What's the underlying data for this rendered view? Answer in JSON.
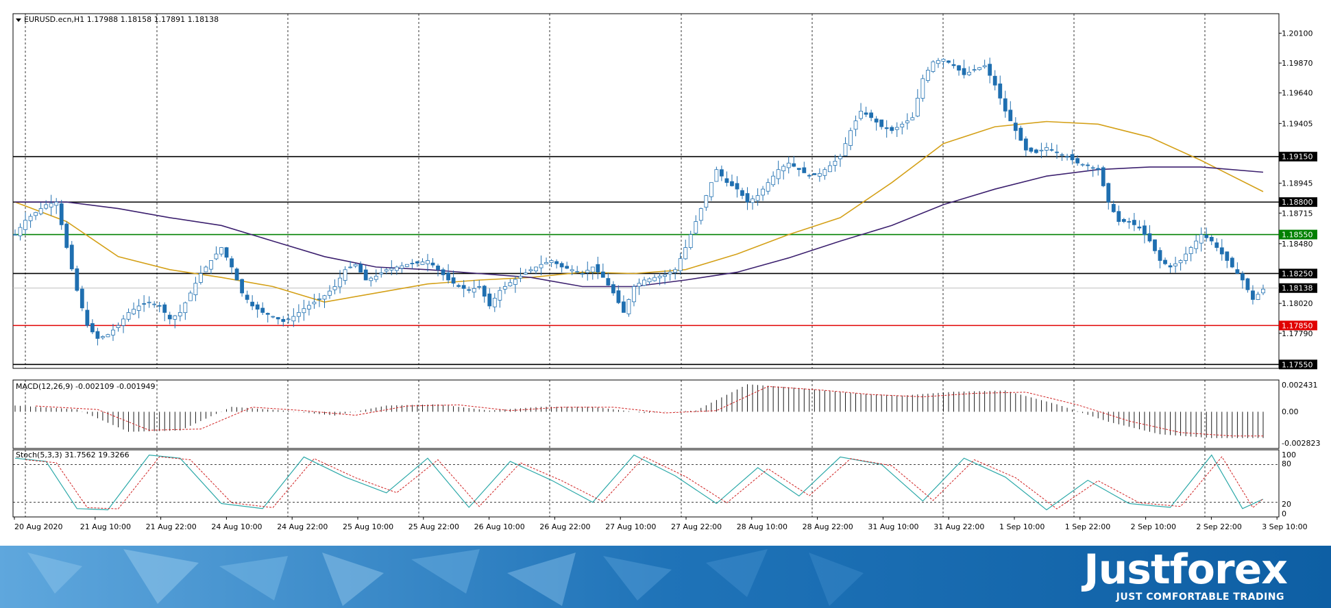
{
  "window": {
    "symbol_line": "EURUSD.ecn,H1  1.17988 1.18158 1.17891 1.18138",
    "macd_label": "MACD(12,26,9) -0.002109 -0.001949",
    "stoch_label": "Stoch(5,3,3) 31.7562 19.3266"
  },
  "price_axis": {
    "ticks": [
      "1.20100",
      "1.19870",
      "1.19640",
      "1.19405",
      "1.18945",
      "1.18715",
      "1.18480",
      "1.18020",
      "1.17790"
    ],
    "tick_values": [
      1.201,
      1.1987,
      1.1964,
      1.19405,
      1.18945,
      1.18715,
      1.1848,
      1.1802,
      1.1779
    ],
    "range": [
      1.1752,
      1.2025
    ]
  },
  "levels": [
    {
      "label": "1.19150",
      "value": 1.1915,
      "color": "#000000"
    },
    {
      "label": "1.18800",
      "value": 1.188,
      "color": "#000000"
    },
    {
      "label": "1.18550",
      "value": 1.1855,
      "color": "#008000"
    },
    {
      "label": "1.18250",
      "value": 1.1825,
      "color": "#000000"
    },
    {
      "label": "1.18138",
      "value": 1.18138,
      "color": "#bdbdbd",
      "current": true
    },
    {
      "label": "1.17850",
      "value": 1.1785,
      "color": "#e00000"
    },
    {
      "label": "1.17550",
      "value": 1.1755,
      "color": "#000000"
    }
  ],
  "macd_axis": {
    "ticks": [
      "0.002431",
      "0.00",
      "-0.002823"
    ]
  },
  "stoch_axis": {
    "ticks": [
      "100",
      "80",
      "20",
      "0"
    ]
  },
  "time_axis": [
    "20 Aug 2020",
    "21 Aug 10:00",
    "21 Aug 22:00",
    "24 Aug 10:00",
    "24 Aug 22:00",
    "25 Aug 10:00",
    "25 Aug 22:00",
    "26 Aug 10:00",
    "26 Aug 22:00",
    "27 Aug 10:00",
    "27 Aug 22:00",
    "28 Aug 10:00",
    "28 Aug 22:00",
    "31 Aug 10:00",
    "31 Aug 22:00",
    "1 Sep 10:00",
    "1 Sep 22:00",
    "2 Sep 10:00",
    "2 Sep 22:00",
    "3 Sep 10:00"
  ],
  "colors": {
    "bull_candle": "#ffffff",
    "bear_candle": "#1f6fb0",
    "candle_outline": "#1f6fb0",
    "ma_fast": "#d4a017",
    "ma_slow": "#3b1f6e",
    "macd_signal": "#d02020",
    "stoch_main": "#2aa8a8",
    "stoch_signal": "#d02020",
    "banner_blue": "#1a6fb3"
  },
  "chart_data": {
    "type": "candlestick",
    "symbol": "EURUSD.ecn",
    "timeframe": "H1",
    "ohlc_last": {
      "open": 1.17988,
      "high": 1.18158,
      "low": 1.17891,
      "close": 1.18138
    },
    "close_path": [
      [
        0,
        1.1855
      ],
      [
        2,
        1.1866
      ],
      [
        4,
        1.1872
      ],
      [
        6,
        1.1878
      ],
      [
        8,
        1.188
      ],
      [
        10,
        1.1845
      ],
      [
        12,
        1.1812
      ],
      [
        14,
        1.1785
      ],
      [
        16,
        1.1775
      ],
      [
        18,
        1.1778
      ],
      [
        20,
        1.1785
      ],
      [
        22,
        1.1795
      ],
      [
        24,
        1.18
      ],
      [
        26,
        1.1803
      ],
      [
        28,
        1.18
      ],
      [
        30,
        1.179
      ],
      [
        32,
        1.1795
      ],
      [
        34,
        1.181
      ],
      [
        36,
        1.1825
      ],
      [
        38,
        1.1835
      ],
      [
        40,
        1.1845
      ],
      [
        42,
        1.183
      ],
      [
        44,
        1.181
      ],
      [
        46,
        1.18
      ],
      [
        48,
        1.1795
      ],
      [
        50,
        1.1792
      ],
      [
        52,
        1.1788
      ],
      [
        54,
        1.1792
      ],
      [
        56,
        1.1798
      ],
      [
        58,
        1.1803
      ],
      [
        60,
        1.1808
      ],
      [
        62,
        1.1815
      ],
      [
        64,
        1.1828
      ],
      [
        66,
        1.1832
      ],
      [
        68,
        1.182
      ],
      [
        70,
        1.1823
      ],
      [
        72,
        1.1828
      ],
      [
        74,
        1.183
      ],
      [
        76,
        1.1832
      ],
      [
        78,
        1.1833
      ],
      [
        80,
        1.1835
      ],
      [
        82,
        1.1828
      ],
      [
        84,
        1.182
      ],
      [
        86,
        1.1815
      ],
      [
        88,
        1.1812
      ],
      [
        90,
        1.1815
      ],
      [
        92,
        1.18
      ],
      [
        94,
        1.1812
      ],
      [
        96,
        1.1818
      ],
      [
        98,
        1.1823
      ],
      [
        100,
        1.1828
      ],
      [
        102,
        1.1832
      ],
      [
        104,
        1.1835
      ],
      [
        106,
        1.183
      ],
      [
        108,
        1.1828
      ],
      [
        110,
        1.1825
      ],
      [
        112,
        1.183
      ],
      [
        114,
        1.1822
      ],
      [
        116,
        1.181
      ],
      [
        118,
        1.1795
      ],
      [
        120,
        1.1815
      ],
      [
        122,
        1.182
      ],
      [
        124,
        1.1822
      ],
      [
        126,
        1.1824
      ],
      [
        128,
        1.1828
      ],
      [
        130,
        1.1845
      ],
      [
        132,
        1.1865
      ],
      [
        134,
        1.1885
      ],
      [
        136,
        1.1905
      ],
      [
        138,
        1.1895
      ],
      [
        140,
        1.189
      ],
      [
        142,
        1.188
      ],
      [
        144,
        1.1885
      ],
      [
        146,
        1.1895
      ],
      [
        148,
        1.1905
      ],
      [
        150,
        1.191
      ],
      [
        152,
        1.1905
      ],
      [
        154,
        1.19
      ],
      [
        156,
        1.1902
      ],
      [
        158,
        1.1908
      ],
      [
        160,
        1.1915
      ],
      [
        162,
        1.1935
      ],
      [
        164,
        1.195
      ],
      [
        166,
        1.1945
      ],
      [
        168,
        1.1938
      ],
      [
        170,
        1.1935
      ],
      [
        172,
        1.194
      ],
      [
        174,
        1.1945
      ],
      [
        176,
        1.1975
      ],
      [
        178,
        1.1988
      ],
      [
        180,
        1.199
      ],
      [
        182,
        1.1985
      ],
      [
        184,
        1.1978
      ],
      [
        186,
        1.1982
      ],
      [
        188,
        1.1985
      ],
      [
        190,
        1.197
      ],
      [
        192,
        1.195
      ],
      [
        194,
        1.1935
      ],
      [
        196,
        1.192
      ],
      [
        198,
        1.1918
      ],
      [
        200,
        1.1922
      ],
      [
        202,
        1.1918
      ],
      [
        204,
        1.1915
      ],
      [
        206,
        1.191
      ],
      [
        208,
        1.1908
      ],
      [
        210,
        1.1905
      ],
      [
        212,
        1.188
      ],
      [
        214,
        1.1865
      ],
      [
        216,
        1.1865
      ],
      [
        218,
        1.186
      ],
      [
        220,
        1.185
      ],
      [
        222,
        1.1835
      ],
      [
        224,
        1.183
      ],
      [
        226,
        1.1835
      ],
      [
        228,
        1.1845
      ],
      [
        230,
        1.1855
      ],
      [
        232,
        1.185
      ],
      [
        234,
        1.184
      ],
      [
        236,
        1.183
      ],
      [
        238,
        1.182
      ],
      [
        240,
        1.1805
      ],
      [
        242,
        1.1813
      ]
    ],
    "ma_fast": [
      [
        0,
        1.188
      ],
      [
        10,
        1.1865
      ],
      [
        20,
        1.1838
      ],
      [
        30,
        1.1828
      ],
      [
        40,
        1.1822
      ],
      [
        50,
        1.1815
      ],
      [
        60,
        1.1803
      ],
      [
        70,
        1.181
      ],
      [
        80,
        1.1817
      ],
      [
        90,
        1.182
      ],
      [
        100,
        1.1822
      ],
      [
        110,
        1.1826
      ],
      [
        120,
        1.1825
      ],
      [
        130,
        1.1828
      ],
      [
        140,
        1.184
      ],
      [
        150,
        1.1855
      ],
      [
        160,
        1.1868
      ],
      [
        170,
        1.1895
      ],
      [
        180,
        1.1925
      ],
      [
        190,
        1.1938
      ],
      [
        200,
        1.1942
      ],
      [
        210,
        1.194
      ],
      [
        220,
        1.193
      ],
      [
        230,
        1.1912
      ],
      [
        242,
        1.1888
      ]
    ],
    "ma_slow": [
      [
        0,
        1.188
      ],
      [
        10,
        1.188
      ],
      [
        20,
        1.1875
      ],
      [
        30,
        1.1868
      ],
      [
        40,
        1.1862
      ],
      [
        50,
        1.185
      ],
      [
        60,
        1.1838
      ],
      [
        70,
        1.183
      ],
      [
        80,
        1.1828
      ],
      [
        90,
        1.1825
      ],
      [
        100,
        1.1822
      ],
      [
        110,
        1.1815
      ],
      [
        120,
        1.1815
      ],
      [
        130,
        1.182
      ],
      [
        140,
        1.1826
      ],
      [
        150,
        1.1837
      ],
      [
        160,
        1.185
      ],
      [
        170,
        1.1862
      ],
      [
        180,
        1.1878
      ],
      [
        190,
        1.189
      ],
      [
        200,
        1.19
      ],
      [
        210,
        1.1905
      ],
      [
        220,
        1.1907
      ],
      [
        230,
        1.1907
      ],
      [
        242,
        1.1903
      ]
    ],
    "macd_hist_range": [
      -0.002823,
      0.002431
    ],
    "macd_hist_path": [
      [
        0,
        0.0005
      ],
      [
        12,
        0.0002
      ],
      [
        22,
        -0.0016
      ],
      [
        32,
        -0.0015
      ],
      [
        42,
        0.0004
      ],
      [
        52,
        0.0001
      ],
      [
        62,
        -0.0003
      ],
      [
        72,
        0.0005
      ],
      [
        82,
        0.0006
      ],
      [
        92,
        0.0001
      ],
      [
        102,
        0.0004
      ],
      [
        112,
        0.0004
      ],
      [
        122,
        -0.0001
      ],
      [
        132,
        0.0001
      ],
      [
        142,
        0.0022
      ],
      [
        152,
        0.0019
      ],
      [
        162,
        0.0015
      ],
      [
        172,
        0.0013
      ],
      [
        182,
        0.0016
      ],
      [
        192,
        0.0017
      ],
      [
        202,
        0.0006
      ],
      [
        212,
        -0.0008
      ],
      [
        222,
        -0.0018
      ],
      [
        232,
        -0.0021
      ],
      [
        242,
        -0.0021
      ]
    ],
    "stoch_main_path": [
      [
        0,
        90
      ],
      [
        6,
        85
      ],
      [
        12,
        10
      ],
      [
        18,
        8
      ],
      [
        26,
        95
      ],
      [
        32,
        90
      ],
      [
        40,
        18
      ],
      [
        48,
        10
      ],
      [
        56,
        92
      ],
      [
        64,
        60
      ],
      [
        72,
        35
      ],
      [
        80,
        90
      ],
      [
        88,
        12
      ],
      [
        96,
        85
      ],
      [
        104,
        55
      ],
      [
        112,
        20
      ],
      [
        120,
        95
      ],
      [
        128,
        62
      ],
      [
        136,
        18
      ],
      [
        144,
        75
      ],
      [
        152,
        30
      ],
      [
        160,
        92
      ],
      [
        168,
        80
      ],
      [
        176,
        22
      ],
      [
        184,
        90
      ],
      [
        192,
        60
      ],
      [
        200,
        8
      ],
      [
        208,
        55
      ],
      [
        216,
        18
      ],
      [
        224,
        12
      ],
      [
        232,
        95
      ],
      [
        238,
        10
      ],
      [
        242,
        25
      ]
    ]
  }
}
